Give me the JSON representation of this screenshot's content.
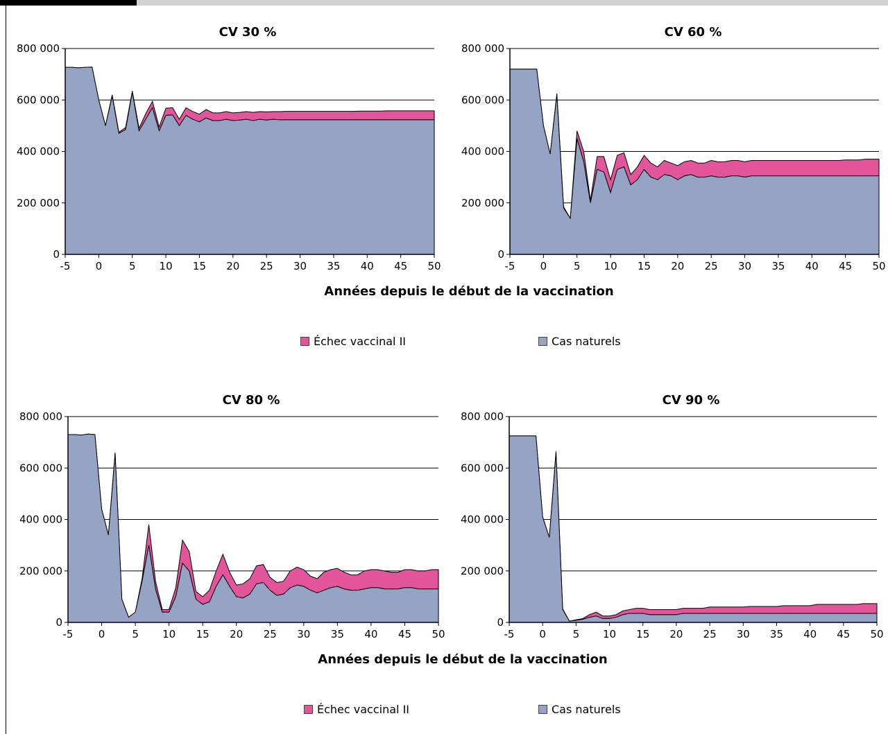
{
  "colors": {
    "natural": "#95a3c5",
    "failure": "#e2559b",
    "grid": "#000000"
  },
  "legend": {
    "failure_label": "Échec vaccinal II",
    "natural_label": "Cas naturels"
  },
  "xlabel": "Années depuis le début de la vaccination",
  "chart_data": [
    {
      "type": "area",
      "title": "CV 30 %",
      "xlim": [
        -5,
        50
      ],
      "ylim": [
        0,
        800000
      ],
      "xticks": [
        -5,
        0,
        5,
        10,
        15,
        20,
        25,
        30,
        35,
        40,
        45,
        50
      ],
      "yticks": [
        0,
        200000,
        400000,
        600000,
        800000
      ],
      "ytick_labels": [
        "0",
        "200 000",
        "400 000",
        "600 000",
        "800 000"
      ],
      "x": [
        -5,
        -4,
        -3,
        -2,
        -1,
        0,
        1,
        2,
        3,
        4,
        5,
        6,
        7,
        8,
        9,
        10,
        11,
        12,
        13,
        14,
        15,
        16,
        17,
        18,
        19,
        20,
        21,
        22,
        23,
        24,
        25,
        26,
        27,
        28,
        29,
        30,
        31,
        32,
        33,
        34,
        35,
        36,
        37,
        38,
        39,
        40,
        41,
        42,
        43,
        44,
        45,
        46,
        47,
        48,
        49,
        50
      ],
      "series": [
        {
          "name": "Cas naturels",
          "values": [
            727000,
            727000,
            725000,
            727000,
            728000,
            600000,
            500000,
            615000,
            470000,
            485000,
            630000,
            480000,
            525000,
            570000,
            480000,
            540000,
            542000,
            500000,
            540000,
            525000,
            515000,
            530000,
            520000,
            520000,
            525000,
            520000,
            522000,
            525000,
            520000,
            525000,
            522000,
            525000,
            523000,
            523000,
            523000,
            523000,
            523000,
            523000,
            523000,
            523000,
            523000,
            523000,
            523000,
            523000,
            523000,
            523000,
            523000,
            523000,
            523000,
            523000,
            523000,
            523000,
            523000,
            523000,
            523000,
            523000
          ]
        },
        {
          "name": "Échec vaccinal II",
          "values": [
            0,
            0,
            0,
            0,
            0,
            0,
            0,
            5000,
            5000,
            8000,
            5000,
            10000,
            22000,
            25000,
            15000,
            28000,
            28000,
            25000,
            30000,
            30000,
            30000,
            33000,
            30000,
            30000,
            30000,
            30000,
            30000,
            30000,
            32000,
            30000,
            32000,
            30000,
            32000,
            33000,
            33000,
            33000,
            33000,
            33000,
            33000,
            33000,
            33000,
            33000,
            33000,
            33000,
            34000,
            34000,
            34000,
            34000,
            35000,
            35000,
            35000,
            35000,
            35000,
            35000,
            35000,
            35000
          ]
        }
      ]
    },
    {
      "type": "area",
      "title": "CV 60 %",
      "xlim": [
        -5,
        50
      ],
      "ylim": [
        0,
        800000
      ],
      "xticks": [
        -5,
        0,
        5,
        10,
        15,
        20,
        25,
        30,
        35,
        40,
        45,
        50
      ],
      "yticks": [
        0,
        200000,
        400000,
        600000,
        800000
      ],
      "ytick_labels": [
        "0",
        "200 000",
        "400 000",
        "600 000",
        "800 000"
      ],
      "x": [
        -5,
        -4,
        -3,
        -2,
        -1,
        0,
        1,
        2,
        3,
        4,
        5,
        6,
        7,
        8,
        9,
        10,
        11,
        12,
        13,
        14,
        15,
        16,
        17,
        18,
        19,
        20,
        21,
        22,
        23,
        24,
        25,
        26,
        27,
        28,
        29,
        30,
        31,
        32,
        33,
        34,
        35,
        36,
        37,
        38,
        39,
        40,
        41,
        42,
        43,
        44,
        45,
        46,
        47,
        48,
        49,
        50
      ],
      "series": [
        {
          "name": "Cas naturels",
          "values": [
            720000,
            720000,
            720000,
            720000,
            720000,
            500000,
            390000,
            620000,
            180000,
            140000,
            450000,
            360000,
            200000,
            330000,
            320000,
            240000,
            330000,
            340000,
            270000,
            290000,
            330000,
            300000,
            290000,
            310000,
            305000,
            290000,
            305000,
            310000,
            300000,
            300000,
            305000,
            300000,
            300000,
            305000,
            305000,
            300000,
            305000,
            305000,
            305000,
            305000,
            305000,
            305000,
            305000,
            305000,
            305000,
            305000,
            305000,
            305000,
            305000,
            305000,
            305000,
            305000,
            305000,
            305000,
            305000,
            305000
          ]
        },
        {
          "name": "Échec vaccinal II",
          "values": [
            0,
            0,
            0,
            0,
            0,
            0,
            0,
            5000,
            5000,
            0,
            30000,
            40000,
            10000,
            50000,
            60000,
            50000,
            55000,
            55000,
            40000,
            50000,
            55000,
            55000,
            50000,
            55000,
            50000,
            55000,
            55000,
            55000,
            55000,
            55000,
            60000,
            60000,
            60000,
            60000,
            60000,
            60000,
            60000,
            60000,
            60000,
            60000,
            60000,
            60000,
            60000,
            60000,
            60000,
            60000,
            60000,
            60000,
            60000,
            60000,
            62000,
            62000,
            62000,
            65000,
            65000,
            65000
          ]
        }
      ]
    },
    {
      "type": "area",
      "title": "CV 80 %",
      "xlim": [
        -5,
        50
      ],
      "ylim": [
        0,
        800000
      ],
      "xticks": [
        -5,
        0,
        5,
        10,
        15,
        20,
        25,
        30,
        35,
        40,
        45,
        50
      ],
      "yticks": [
        0,
        200000,
        400000,
        600000,
        800000
      ],
      "ytick_labels": [
        "0",
        "200 000",
        "400 000",
        "600 000",
        "800 000"
      ],
      "x": [
        -5,
        -4,
        -3,
        -2,
        -1,
        0,
        1,
        2,
        3,
        4,
        5,
        6,
        7,
        8,
        9,
        10,
        11,
        12,
        13,
        14,
        15,
        16,
        17,
        18,
        19,
        20,
        21,
        22,
        23,
        24,
        25,
        26,
        27,
        28,
        29,
        30,
        31,
        32,
        33,
        34,
        35,
        36,
        37,
        38,
        39,
        40,
        41,
        42,
        43,
        44,
        45,
        46,
        47,
        48,
        49,
        50
      ],
      "series": [
        {
          "name": "Cas naturels",
          "values": [
            730000,
            730000,
            728000,
            732000,
            730000,
            440000,
            340000,
            655000,
            90000,
            20000,
            40000,
            160000,
            300000,
            130000,
            40000,
            40000,
            100000,
            230000,
            200000,
            90000,
            70000,
            80000,
            140000,
            185000,
            140000,
            100000,
            95000,
            110000,
            150000,
            155000,
            125000,
            105000,
            110000,
            135000,
            145000,
            140000,
            125000,
            115000,
            125000,
            135000,
            140000,
            130000,
            125000,
            125000,
            130000,
            135000,
            135000,
            130000,
            130000,
            130000,
            135000,
            135000,
            130000,
            130000,
            130000,
            130000
          ]
        },
        {
          "name": "Échec vaccinal II",
          "values": [
            0,
            0,
            0,
            0,
            0,
            0,
            0,
            5000,
            0,
            0,
            0,
            10000,
            80000,
            30000,
            10000,
            10000,
            35000,
            90000,
            75000,
            30000,
            30000,
            45000,
            60000,
            80000,
            55000,
            45000,
            55000,
            60000,
            70000,
            70000,
            50000,
            50000,
            50000,
            65000,
            70000,
            65000,
            55000,
            55000,
            70000,
            70000,
            70000,
            65000,
            60000,
            60000,
            70000,
            70000,
            70000,
            70000,
            65000,
            65000,
            70000,
            70000,
            70000,
            70000,
            75000,
            75000
          ]
        }
      ]
    },
    {
      "type": "area",
      "title": "CV 90 %",
      "xlim": [
        -5,
        50
      ],
      "ylim": [
        0,
        800000
      ],
      "xticks": [
        -5,
        0,
        5,
        10,
        15,
        20,
        25,
        30,
        35,
        40,
        45,
        50
      ],
      "yticks": [
        0,
        200000,
        400000,
        600000,
        800000
      ],
      "ytick_labels": [
        "0",
        "200 000",
        "400 000",
        "600 000",
        "800 000"
      ],
      "x": [
        -5,
        -4,
        -3,
        -2,
        -1,
        0,
        1,
        2,
        3,
        4,
        5,
        6,
        7,
        8,
        9,
        10,
        11,
        12,
        13,
        14,
        15,
        16,
        17,
        18,
        19,
        20,
        21,
        22,
        23,
        24,
        25,
        26,
        27,
        28,
        29,
        30,
        31,
        32,
        33,
        34,
        35,
        36,
        37,
        38,
        39,
        40,
        41,
        42,
        43,
        44,
        45,
        46,
        47,
        48,
        49,
        50
      ],
      "series": [
        {
          "name": "Cas naturels",
          "values": [
            725000,
            725000,
            725000,
            725000,
            725000,
            410000,
            330000,
            660000,
            50000,
            5000,
            8000,
            12000,
            20000,
            25000,
            15000,
            15000,
            20000,
            30000,
            35000,
            35000,
            35000,
            30000,
            30000,
            30000,
            30000,
            30000,
            35000,
            35000,
            35000,
            35000,
            35000,
            35000,
            35000,
            35000,
            35000,
            35000,
            35000,
            35000,
            35000,
            35000,
            35000,
            35000,
            35000,
            35000,
            35000,
            35000,
            35000,
            35000,
            35000,
            35000,
            35000,
            35000,
            35000,
            35000,
            35000,
            35000
          ]
        },
        {
          "name": "Échec vaccinal II",
          "values": [
            0,
            0,
            0,
            0,
            0,
            0,
            0,
            5000,
            3000,
            0,
            2000,
            3000,
            10000,
            15000,
            10000,
            10000,
            10000,
            15000,
            15000,
            20000,
            20000,
            20000,
            20000,
            20000,
            20000,
            20000,
            20000,
            20000,
            20000,
            20000,
            25000,
            25000,
            25000,
            25000,
            25000,
            25000,
            27000,
            27000,
            27000,
            27000,
            27000,
            30000,
            30000,
            30000,
            30000,
            30000,
            35000,
            35000,
            35000,
            35000,
            35000,
            35000,
            35000,
            38000,
            38000,
            38000
          ]
        }
      ]
    }
  ]
}
